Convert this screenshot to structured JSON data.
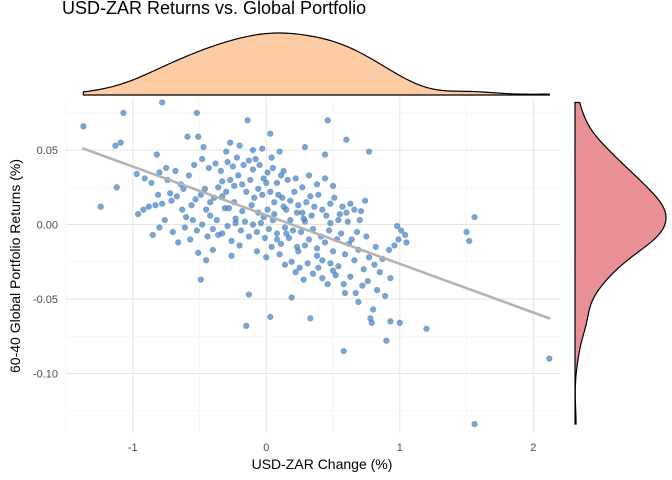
{
  "chart_data": {
    "type": "scatter",
    "title": "USD-ZAR Returns vs. Global Portfolio",
    "xlabel": "USD-ZAR Change (%)",
    "ylabel": "60-40 Global Portfolio Returns (%)",
    "xlim": [
      -1.5,
      2.2
    ],
    "ylim": [
      -0.14,
      0.085
    ],
    "x_ticks": [
      -1,
      0,
      1,
      2
    ],
    "x_tick_labels": [
      "-1",
      "0",
      "1",
      "2"
    ],
    "y_ticks": [
      -0.1,
      -0.05,
      0.0,
      0.05
    ],
    "y_tick_labels": [
      "-0.10",
      "-0.05",
      "0.00",
      "0.05"
    ],
    "grid": true,
    "legend": "none",
    "colors": {
      "points": "#3a7bbf",
      "trend_line": "#b3b3b3",
      "x_density_fill": "#fdcba4",
      "y_density_fill": "#e89094",
      "density_outline": "#000000"
    },
    "trend_line": {
      "x": [
        -1.37,
        2.12
      ],
      "y": [
        0.051,
        -0.063
      ]
    },
    "points": [
      [
        -1.37,
        0.066
      ],
      [
        -1.07,
        0.075
      ],
      [
        -0.78,
        0.082
      ],
      [
        -0.52,
        0.075
      ],
      [
        -0.14,
        0.07
      ],
      [
        0.03,
        0.061
      ],
      [
        0.46,
        0.07
      ],
      [
        0.6,
        0.057
      ],
      [
        0.44,
        0.047
      ],
      [
        0.77,
        0.049
      ],
      [
        -1.13,
        0.053
      ],
      [
        -1.09,
        0.055
      ],
      [
        -0.82,
        0.047
      ],
      [
        -0.59,
        0.059
      ],
      [
        -0.51,
        0.059
      ],
      [
        -0.47,
        0.052
      ],
      [
        -0.3,
        0.049
      ],
      [
        -0.27,
        0.055
      ],
      [
        -0.2,
        0.053
      ],
      [
        -0.1,
        0.05
      ],
      [
        -0.03,
        0.051
      ],
      [
        0.1,
        0.049
      ],
      [
        0.29,
        0.052
      ],
      [
        0.04,
        0.045
      ],
      [
        -0.08,
        0.044
      ],
      [
        -1.12,
        0.025
      ],
      [
        -1.24,
        0.012
      ],
      [
        -0.96,
        0.007
      ],
      [
        -0.92,
        0.01
      ],
      [
        -0.88,
        0.012
      ],
      [
        -0.83,
        0.013
      ],
      [
        -0.81,
        0.02
      ],
      [
        -0.78,
        0.014
      ],
      [
        -0.72,
        0.021
      ],
      [
        -0.67,
        0.019
      ],
      [
        -0.63,
        0.01
      ],
      [
        -0.6,
        0.005
      ],
      [
        -0.56,
        0.013
      ],
      [
        -0.53,
        0.017
      ],
      [
        -0.49,
        0.02
      ],
      [
        -0.45,
        0.01
      ],
      [
        -0.42,
        0.015
      ],
      [
        -0.39,
        0.018
      ],
      [
        -0.36,
        0.025
      ],
      [
        -0.33,
        0.029
      ],
      [
        -0.3,
        0.022
      ],
      [
        -0.27,
        0.03
      ],
      [
        -0.24,
        0.026
      ],
      [
        -0.21,
        0.033
      ],
      [
        -0.18,
        0.027
      ],
      [
        -0.15,
        0.022
      ],
      [
        -0.12,
        0.03
      ],
      [
        -0.09,
        0.018
      ],
      [
        -0.06,
        0.024
      ],
      [
        -0.03,
        0.02
      ],
      [
        0.0,
        0.028
      ],
      [
        0.03,
        0.022
      ],
      [
        0.06,
        0.015
      ],
      [
        0.09,
        0.02
      ],
      [
        0.12,
        0.018
      ],
      [
        0.15,
        0.01
      ],
      [
        0.18,
        0.016
      ],
      [
        0.21,
        0.022
      ],
      [
        0.24,
        0.013
      ],
      [
        0.27,
        0.008
      ],
      [
        0.3,
        0.015
      ],
      [
        0.33,
        0.019
      ],
      [
        0.36,
        0.012
      ],
      [
        0.39,
        0.02
      ],
      [
        0.42,
        0.01
      ],
      [
        0.45,
        0.006
      ],
      [
        0.48,
        0.014
      ],
      [
        0.51,
        0.018
      ],
      [
        0.54,
        0.003
      ],
      [
        0.57,
        0.012
      ],
      [
        0.6,
        0.008
      ],
      [
        0.63,
        0.014
      ],
      [
        0.66,
        0.01
      ],
      [
        0.7,
        0.003
      ],
      [
        0.74,
        0.016
      ],
      [
        -0.97,
        0.034
      ],
      [
        -0.91,
        0.031
      ],
      [
        -0.86,
        0.028
      ],
      [
        -0.8,
        0.035
      ],
      [
        -0.74,
        0.03
      ],
      [
        -0.68,
        0.036
      ],
      [
        -0.64,
        0.027
      ],
      [
        -0.58,
        0.033
      ],
      [
        -0.54,
        0.04
      ],
      [
        -0.48,
        0.044
      ],
      [
        -0.43,
        0.038
      ],
      [
        -0.38,
        0.041
      ],
      [
        -0.34,
        0.036
      ],
      [
        -0.29,
        0.042
      ],
      [
        -0.25,
        0.039
      ],
      [
        -0.22,
        0.045
      ],
      [
        -0.17,
        0.04
      ],
      [
        -0.13,
        0.043
      ],
      [
        -0.1,
        0.037
      ],
      [
        -0.05,
        0.04
      ],
      [
        0.01,
        0.035
      ],
      [
        0.05,
        0.038
      ],
      [
        0.11,
        0.033
      ],
      [
        0.16,
        0.03
      ],
      [
        0.22,
        0.031
      ],
      [
        0.27,
        0.025
      ],
      [
        0.32,
        0.033
      ],
      [
        0.38,
        0.027
      ],
      [
        0.44,
        0.031
      ],
      [
        0.5,
        0.026
      ],
      [
        -0.85,
        -0.007
      ],
      [
        -0.8,
        -0.002
      ],
      [
        -0.76,
        0.003
      ],
      [
        -0.7,
        -0.005
      ],
      [
        -0.66,
        -0.012
      ],
      [
        -0.61,
        -0.002
      ],
      [
        -0.57,
        -0.01
      ],
      [
        -0.52,
        -0.004
      ],
      [
        -0.48,
        0.0
      ],
      [
        -0.44,
        -0.008
      ],
      [
        -0.4,
        -0.003
      ],
      [
        -0.37,
        0.003
      ],
      [
        -0.33,
        -0.006
      ],
      [
        -0.29,
        -0.001
      ],
      [
        -0.26,
        -0.011
      ],
      [
        -0.23,
        0.004
      ],
      [
        -0.19,
        -0.004
      ],
      [
        -0.16,
        0.002
      ],
      [
        -0.13,
        -0.008
      ],
      [
        -0.1,
        0.0
      ],
      [
        -0.07,
        -0.005
      ],
      [
        -0.04,
        0.001
      ],
      [
        -0.01,
        -0.009
      ],
      [
        0.02,
        -0.003
      ],
      [
        0.05,
        0.003
      ],
      [
        0.08,
        -0.006
      ],
      [
        0.11,
        -0.013
      ],
      [
        0.14,
        -0.002
      ],
      [
        0.17,
        -0.009
      ],
      [
        0.2,
        -0.004
      ],
      [
        0.23,
        -0.015
      ],
      [
        0.26,
        -0.005
      ],
      [
        0.29,
        0.002
      ],
      [
        0.32,
        -0.01
      ],
      [
        0.35,
        -0.003
      ],
      [
        0.38,
        -0.016
      ],
      [
        0.41,
        -0.008
      ],
      [
        0.44,
        -0.012
      ],
      [
        0.47,
        -0.004
      ],
      [
        0.5,
        -0.018
      ],
      [
        0.53,
        -0.01
      ],
      [
        0.56,
        -0.006
      ],
      [
        0.59,
        -0.02
      ],
      [
        0.62,
        -0.013
      ],
      [
        0.66,
        -0.024
      ],
      [
        0.69,
        -0.017
      ],
      [
        0.73,
        -0.03
      ],
      [
        0.77,
        -0.022
      ],
      [
        0.81,
        -0.027
      ],
      [
        0.85,
        -0.032
      ],
      [
        -0.51,
        -0.019
      ],
      [
        -0.45,
        -0.024
      ],
      [
        -0.4,
        -0.017
      ],
      [
        -0.26,
        -0.021
      ],
      [
        -0.2,
        -0.014
      ],
      [
        -0.07,
        -0.018
      ],
      [
        0.0,
        -0.022
      ],
      [
        0.04,
        -0.015
      ],
      [
        0.1,
        -0.02
      ],
      [
        0.14,
        -0.027
      ],
      [
        0.19,
        -0.025
      ],
      [
        0.22,
        -0.032
      ],
      [
        0.25,
        -0.029
      ],
      [
        0.28,
        -0.037
      ],
      [
        0.31,
        -0.026
      ],
      [
        0.35,
        -0.033
      ],
      [
        0.39,
        -0.029
      ],
      [
        0.42,
        -0.036
      ],
      [
        0.46,
        -0.04
      ],
      [
        0.5,
        -0.031
      ],
      [
        0.54,
        -0.028
      ],
      [
        0.58,
        -0.04
      ],
      [
        0.63,
        -0.035
      ],
      [
        0.67,
        -0.046
      ],
      [
        0.72,
        -0.041
      ],
      [
        0.76,
        -0.038
      ],
      [
        0.8,
        -0.057
      ],
      [
        0.83,
        -0.044
      ],
      [
        0.89,
        -0.048
      ],
      [
        0.93,
        -0.036
      ],
      [
        -0.49,
        -0.037
      ],
      [
        -0.13,
        -0.047
      ],
      [
        0.19,
        -0.049
      ],
      [
        0.33,
        -0.063
      ],
      [
        0.59,
        -0.046
      ],
      [
        0.69,
        -0.052
      ],
      [
        0.78,
        -0.063
      ],
      [
        0.79,
        -0.066
      ],
      [
        0.93,
        -0.065
      ],
      [
        1.0,
        -0.066
      ],
      [
        1.2,
        -0.07
      ],
      [
        0.9,
        -0.078
      ],
      [
        0.58,
        -0.085
      ],
      [
        -0.15,
        -0.068
      ],
      [
        0.03,
        -0.062
      ],
      [
        -0.23,
        0.001
      ],
      [
        -0.36,
        -0.007
      ],
      [
        -0.42,
        0.006
      ],
      [
        -0.55,
        0.003
      ],
      [
        -0.31,
        0.011
      ],
      [
        0.01,
        0.01
      ],
      [
        0.06,
        0.007
      ],
      [
        0.13,
        0.012
      ],
      [
        0.18,
        0.003
      ],
      [
        0.23,
        0.008
      ],
      [
        0.28,
        0.004
      ],
      [
        0.34,
        0.006
      ],
      [
        -0.18,
        0.009
      ],
      [
        -0.11,
        0.013
      ],
      [
        -0.06,
        0.008
      ],
      [
        -0.24,
        0.015
      ],
      [
        -0.28,
        0.011
      ],
      [
        -0.33,
        0.019
      ],
      [
        -0.46,
        0.024
      ],
      [
        -0.62,
        0.024
      ],
      [
        -0.71,
        0.016
      ],
      [
        -0.75,
        0.038
      ],
      [
        0.08,
        0.028
      ],
      [
        0.13,
        0.036
      ],
      [
        -0.02,
        0.031
      ],
      [
        0.98,
        -0.001
      ],
      [
        1.01,
        -0.004
      ],
      [
        1.04,
        -0.007
      ],
      [
        0.99,
        -0.01
      ],
      [
        0.96,
        -0.014
      ],
      [
        1.05,
        -0.012
      ],
      [
        0.92,
        -0.017
      ],
      [
        1.5,
        -0.005
      ],
      [
        1.52,
        -0.011
      ],
      [
        1.56,
        0.005
      ],
      [
        0.64,
        -0.01
      ],
      [
        0.68,
        -0.005
      ],
      [
        0.71,
        0.009
      ],
      [
        0.48,
        0.001
      ],
      [
        0.55,
        0.007
      ],
      [
        0.61,
        0.002
      ],
      [
        0.75,
        -0.008
      ],
      [
        0.82,
        -0.015
      ],
      [
        0.87,
        -0.023
      ],
      [
        0.38,
        -0.021
      ],
      [
        0.29,
        -0.014
      ],
      [
        0.24,
        -0.018
      ],
      [
        0.15,
        -0.006
      ],
      [
        0.08,
        -0.01
      ],
      [
        0.42,
        -0.024
      ],
      [
        0.48,
        -0.026
      ],
      [
        0.52,
        -0.034
      ],
      [
        2.12,
        -0.09
      ],
      [
        1.56,
        -0.134
      ],
      [
        -0.02,
        0.005
      ]
    ]
  }
}
